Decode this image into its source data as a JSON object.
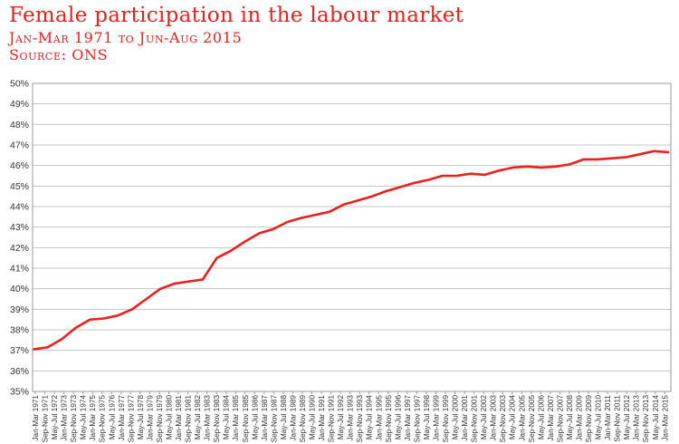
{
  "chart_data": {
    "type": "line",
    "title": "Female participation in the labour market",
    "subtitle_lines": [
      "Jan-Mar 1971 to Jun-Aug 2015",
      "Source: ONS"
    ],
    "xlabel": "",
    "ylabel": "",
    "ylim": [
      35,
      50
    ],
    "y_ticks": [
      "35%",
      "36%",
      "37%",
      "38%",
      "39%",
      "40%",
      "41%",
      "42%",
      "43%",
      "44%",
      "45%",
      "46%",
      "47%",
      "48%",
      "49%",
      "50%"
    ],
    "grid": true,
    "legend": "none",
    "line_color": "#e8201f",
    "x_tick_labels": [
      "Jan-Mar 1971",
      "Sep-Nov 1971",
      "May-Jul 1972",
      "Jan-Mar 1973",
      "Sep-Nov 1973",
      "May-Jul 1974",
      "Jan-Mar 1975",
      "Sep-Nov 1975",
      "May-Jul 1976",
      "Jan-Mar 1977",
      "Sep-Nov 1977",
      "May-Jul 1978",
      "Jan-Mar 1979",
      "Sep-Nov 1979",
      "May-Jul 1980",
      "Jan-Mar 1981",
      "Sep-Nov 1981",
      "May-Jul 1982",
      "Jan-Mar 1983",
      "Sep-Nov 1983",
      "May-Jul 1984",
      "Jan-Mar 1985",
      "Sep-Nov 1985",
      "May-Jul 1986",
      "Jan-Mar 1987",
      "Sep-Nov 1987",
      "May-Jul 1988",
      "Jan-Mar 1989",
      "Sep-Nov 1989",
      "May-Jul 1990",
      "Jan-Mar 1991",
      "Sep-Nov 1991",
      "May-Jul 1992",
      "Jan-Mar 1993",
      "Sep-Nov 1993",
      "May-Jul 1994",
      "Jan-Mar 1995",
      "Sep-Nov 1995",
      "May-Jul 1996",
      "Jan-Mar 1997",
      "Sep-Nov 1997",
      "May-Jul 1998",
      "Jan-Mar 1999",
      "Sep-Nov 1999",
      "May-Jul 2000",
      "Jan-Mar 2001",
      "Sep-Nov 2001",
      "May-Jul 2002",
      "Jan-Mar 2003",
      "Sep-Nov 2003",
      "May-Jul 2004",
      "Jan-Mar 2005",
      "Sep-Nov 2005",
      "May-Jul 2006",
      "Jan-Mar 2007",
      "Sep-Nov 2007",
      "May-Jul 2008",
      "Jan-Mar 2009",
      "Sep-Nov 2009",
      "May-Jul 2010",
      "Jan-Mar 2011",
      "Sep-Nov 2011",
      "May-Jul 2012",
      "Jan-Mar 2013",
      "Sep-Nov 2013",
      "May-Jul 2014",
      "Jan-Mar 2015"
    ],
    "x": [
      "Jan-Mar 1971",
      "Jan-Mar 1972",
      "Jan-Mar 1973",
      "Jan-Mar 1974",
      "Jan-Mar 1975",
      "Jan-Mar 1976",
      "Jan-Mar 1977",
      "Jan-Mar 1978",
      "Jan-Mar 1979",
      "Jan-Mar 1980",
      "Jan-Mar 1981",
      "Jan-Mar 1982",
      "Jan-Mar 1983",
      "Jan-Mar 1984",
      "Jan-Mar 1985",
      "Jan-Mar 1986",
      "Jan-Mar 1987",
      "Jan-Mar 1988",
      "Jan-Mar 1989",
      "Jan-Mar 1990",
      "Jan-Mar 1991",
      "Jan-Mar 1992",
      "Jan-Mar 1993",
      "Jan-Mar 1994",
      "Jan-Mar 1995",
      "Jan-Mar 1996",
      "Jan-Mar 1997",
      "Jan-Mar 1998",
      "Jan-Mar 1999",
      "Jan-Mar 2000",
      "Jan-Mar 2001",
      "Jan-Mar 2002",
      "Jan-Mar 2003",
      "Jan-Mar 2004",
      "Jan-Mar 2005",
      "Jan-Mar 2006",
      "Jan-Mar 2007",
      "Jan-Mar 2008",
      "Jan-Mar 2009",
      "Jan-Mar 2010",
      "Jan-Mar 2011",
      "Jan-Mar 2012",
      "Jan-Mar 2013",
      "Jan-Mar 2014",
      "Jan-Mar 2015",
      "Jun-Aug 2015"
    ],
    "series": [
      {
        "values": [
          37.05,
          37.15,
          37.55,
          38.1,
          38.5,
          38.55,
          38.7,
          39.0,
          39.5,
          40.0,
          40.25,
          40.35,
          40.45,
          41.5,
          41.85,
          42.3,
          42.7,
          42.9,
          43.25,
          43.45,
          43.6,
          43.75,
          44.1,
          44.3,
          44.5,
          44.75,
          44.95,
          45.15,
          45.3,
          45.5,
          45.5,
          45.6,
          45.55,
          45.75,
          45.9,
          45.95,
          45.9,
          45.95,
          46.05,
          46.3,
          46.3,
          46.35,
          46.4,
          46.55,
          46.7,
          46.65
        ]
      }
    ]
  }
}
